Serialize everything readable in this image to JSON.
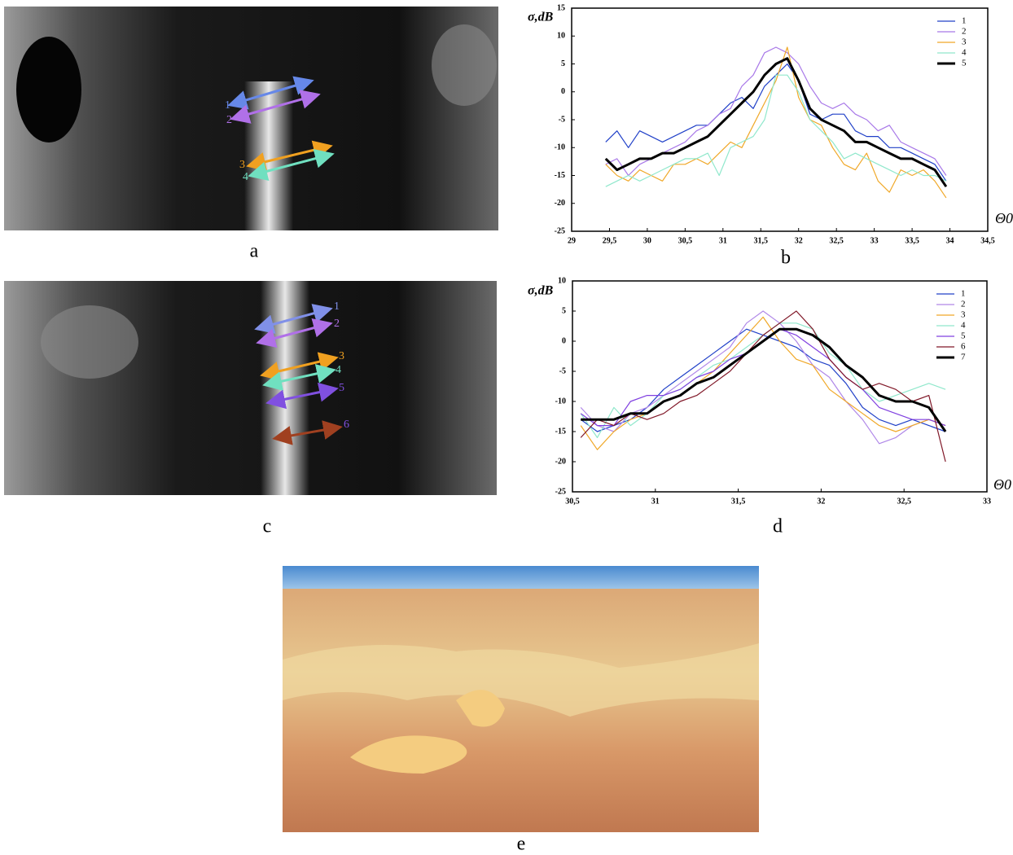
{
  "chart_data": [
    {
      "type": "line",
      "panel_label": "b",
      "ylabel": "σ,dB",
      "xlabel": "Θ0",
      "xlim": [
        29,
        34.5
      ],
      "ylim": [
        -25,
        15
      ],
      "xticks": [
        29,
        {
          "value": 29.5,
          "label": "29,5"
        },
        30,
        {
          "value": 30.5,
          "label": "30,5"
        },
        31,
        {
          "value": 31.5,
          "label": "31,5"
        },
        32,
        {
          "value": 32.5,
          "label": "32,5"
        },
        33,
        {
          "value": 33.5,
          "label": "33,5"
        },
        34,
        {
          "value": 34.5,
          "label": "34,5"
        }
      ],
      "yticks": [
        -25,
        -20,
        -15,
        -10,
        -5,
        0,
        5,
        10,
        15
      ],
      "legend": "upper right",
      "x": [
        29.45,
        29.6,
        29.75,
        29.9,
        30.05,
        30.2,
        30.35,
        30.5,
        30.65,
        30.8,
        30.95,
        31.1,
        31.25,
        31.4,
        31.55,
        31.7,
        31.85,
        32,
        32.15,
        32.3,
        32.45,
        32.6,
        32.75,
        32.9,
        33.05,
        33.2,
        33.35,
        33.5,
        33.65,
        33.8,
        33.95
      ],
      "series": [
        {
          "name": "1",
          "color": "#2040c8",
          "width": 1.2,
          "values": [
            -9,
            -7,
            -10,
            -7,
            -8,
            -9,
            -8,
            -7,
            -6,
            -6,
            -4,
            -2,
            -1,
            -3,
            1,
            3,
            5,
            2,
            -4,
            -5,
            -4,
            -4,
            -7,
            -8,
            -8,
            -10,
            -10,
            -11,
            -12,
            -13,
            -16
          ]
        },
        {
          "name": "2",
          "color": "#a878e8",
          "width": 1.2,
          "values": [
            -13,
            -12,
            -15,
            -13,
            -12,
            -11,
            -10,
            -9,
            -7,
            -6,
            -4,
            -3,
            1,
            3,
            7,
            8,
            7,
            5,
            1,
            -2,
            -3,
            -2,
            -4,
            -5,
            -7,
            -6,
            -9,
            -10,
            -11,
            -12,
            -15
          ]
        },
        {
          "name": "3",
          "color": "#f0a828",
          "width": 1.2,
          "values": [
            -13,
            -15,
            -16,
            -14,
            -15,
            -16,
            -13,
            -13,
            -12,
            -13,
            -11,
            -9,
            -10,
            -6,
            -2,
            2,
            8,
            -1,
            -5,
            -6,
            -10,
            -13,
            -14,
            -11,
            -16,
            -18,
            -14,
            -15,
            -14,
            -16,
            -19
          ]
        },
        {
          "name": "4",
          "color": "#90e8cc",
          "width": 1.2,
          "values": [
            -17,
            -16,
            -15,
            -16,
            -15,
            -14,
            -13,
            -12,
            -12,
            -11,
            -15,
            -10,
            -9,
            -8,
            -5,
            3,
            3,
            0,
            -5,
            -7,
            -9,
            -12,
            -11,
            -12,
            -13,
            -14,
            -15,
            -14,
            -15,
            -15,
            -16
          ]
        },
        {
          "name": "5",
          "color": "#000000",
          "width": 3,
          "values": [
            -12,
            -14,
            -13,
            -12,
            -12,
            -11,
            -11,
            -10,
            -9,
            -8,
            -6,
            -4,
            -2,
            0,
            3,
            5,
            6,
            2,
            -3,
            -5,
            -6,
            -7,
            -9,
            -9,
            -10,
            -11,
            -12,
            -12,
            -13,
            -14,
            -17
          ]
        }
      ]
    },
    {
      "type": "line",
      "panel_label": "d",
      "ylabel": "σ,dB",
      "xlabel": "Θ0",
      "xlim": [
        30.5,
        33
      ],
      "ylim": [
        -25,
        10
      ],
      "xticks": [
        {
          "value": 30.5,
          "label": "30,5"
        },
        31,
        {
          "value": 31.5,
          "label": "31,5"
        },
        32,
        {
          "value": 32.5,
          "label": "32,5"
        },
        33
      ],
      "yticks": [
        -25,
        -20,
        -15,
        -10,
        -5,
        0,
        5,
        10
      ],
      "legend": "upper right",
      "x": [
        30.55,
        30.65,
        30.75,
        30.85,
        30.95,
        31.05,
        31.15,
        31.25,
        31.35,
        31.45,
        31.55,
        31.65,
        31.75,
        31.85,
        31.95,
        32.05,
        32.15,
        32.25,
        32.35,
        32.45,
        32.55,
        32.65,
        32.75
      ],
      "series": [
        {
          "name": "1",
          "color": "#2040c8",
          "width": 1.2,
          "values": [
            -13,
            -15,
            -14,
            -13,
            -11,
            -8,
            -6,
            -4,
            -2,
            0,
            2,
            1,
            0,
            -1,
            -3,
            -4,
            -7,
            -11,
            -13,
            -14,
            -13,
            -14,
            -15
          ]
        },
        {
          "name": "2",
          "color": "#b088e8",
          "width": 1.2,
          "values": [
            -11,
            -14,
            -15,
            -12,
            -11,
            -9,
            -7,
            -5,
            -3,
            -1,
            3,
            5,
            3,
            0,
            -4,
            -6,
            -10,
            -13,
            -17,
            -16,
            -14,
            -13,
            -14
          ]
        },
        {
          "name": "3",
          "color": "#f0a828",
          "width": 1.2,
          "values": [
            -14,
            -18,
            -15,
            -13,
            -12,
            -10,
            -9,
            -7,
            -5,
            -2,
            1,
            4,
            0,
            -3,
            -4,
            -8,
            -10,
            -12,
            -14,
            -15,
            -14,
            -13,
            -14
          ]
        },
        {
          "name": "4",
          "color": "#90e8cc",
          "width": 1.2,
          "values": [
            -12,
            -16,
            -11,
            -14,
            -12,
            -9,
            -8,
            -6,
            -4,
            -3,
            -1,
            1,
            3,
            3,
            2,
            -2,
            -4,
            -8,
            -10,
            -9,
            -8,
            -7,
            -8
          ]
        },
        {
          "name": "5",
          "color": "#8040e0",
          "width": 1.2,
          "values": [
            -12,
            -14,
            -14,
            -10,
            -9,
            -9,
            -8,
            -6,
            -5,
            -3,
            -2,
            0,
            2,
            1,
            -1,
            -3,
            -6,
            -8,
            -11,
            -12,
            -13,
            -13,
            -14
          ]
        },
        {
          "name": "6",
          "color": "#801828",
          "width": 1.2,
          "values": [
            -16,
            -13,
            -14,
            -12,
            -13,
            -12,
            -10,
            -9,
            -7,
            -5,
            -2,
            1,
            3,
            5,
            2,
            -3,
            -6,
            -8,
            -7,
            -8,
            -10,
            -9,
            -20
          ]
        },
        {
          "name": "7",
          "color": "#000000",
          "width": 3,
          "values": [
            -13,
            -13,
            -13,
            -12,
            -12,
            -10,
            -9,
            -7,
            -6,
            -4,
            -2,
            0,
            2,
            2,
            1,
            -1,
            -4,
            -6,
            -9,
            -10,
            -10,
            -11,
            -15
          ]
        }
      ]
    }
  ],
  "panels": {
    "a": {
      "label": "a",
      "markers": [
        "1",
        "2",
        "3",
        "4"
      ]
    },
    "c": {
      "label": "c",
      "markers": [
        "1",
        "2",
        "3",
        "4",
        "5",
        "6"
      ]
    },
    "e": {
      "label": "e"
    }
  }
}
